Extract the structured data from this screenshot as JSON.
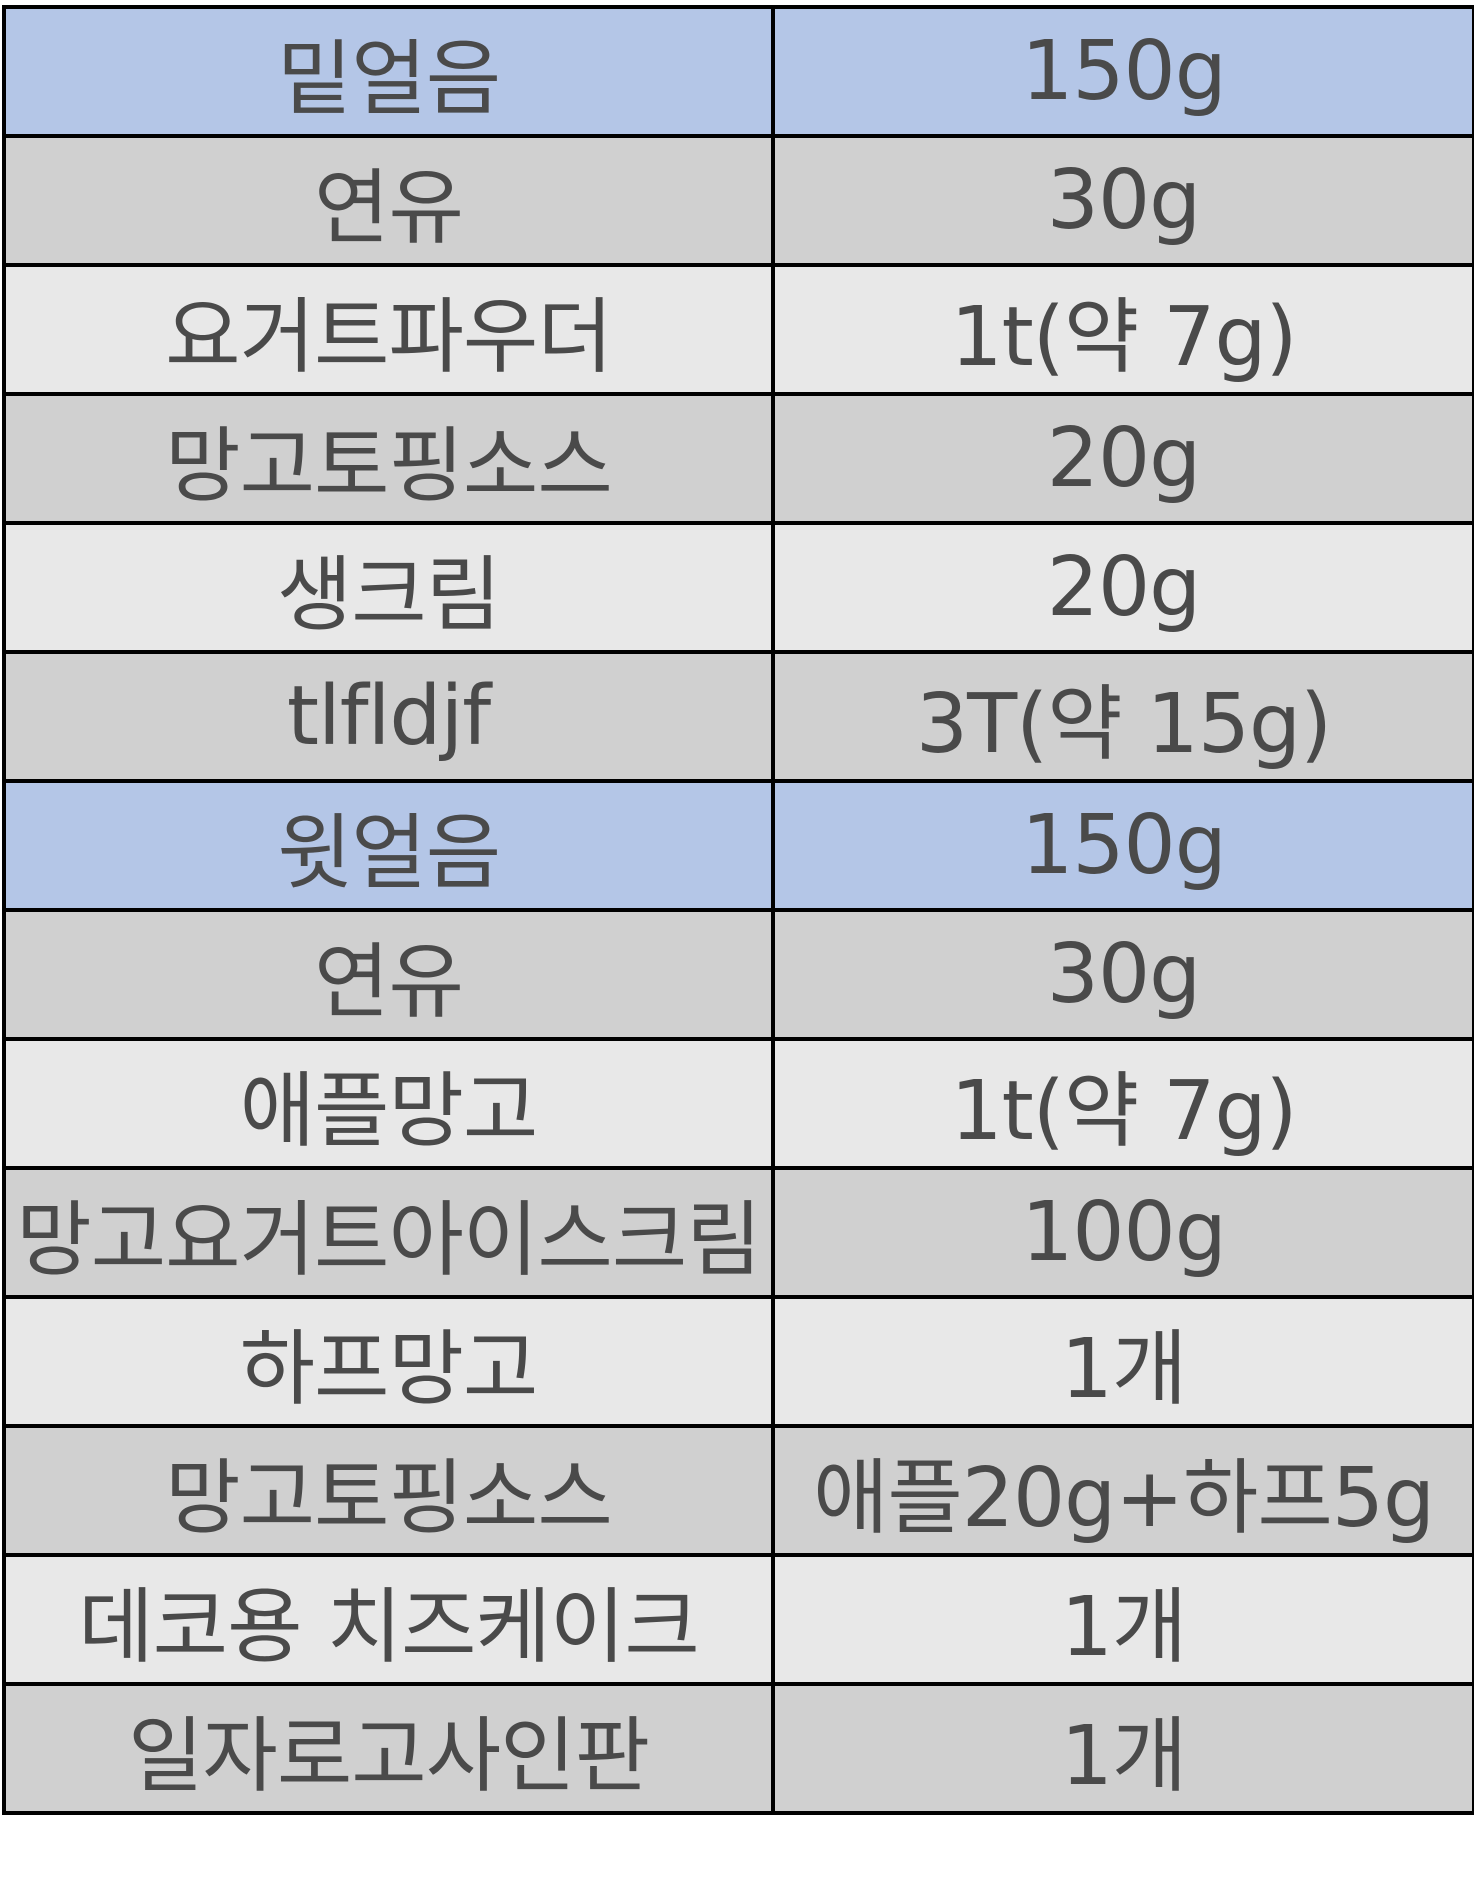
{
  "rows": [
    {
      "name": "밑얼음",
      "amount": "150g",
      "shade": "blue"
    },
    {
      "name": "연유",
      "amount": "30g",
      "shade": "dark"
    },
    {
      "name": "요거트파우더",
      "amount": "1t(약 7g)",
      "shade": "light"
    },
    {
      "name": "망고토핑소스",
      "amount": "20g",
      "shade": "dark"
    },
    {
      "name": "생크림",
      "amount": "20g",
      "shade": "light"
    },
    {
      "name": "tlfldjf",
      "amount": "3T(약 15g)",
      "shade": "dark"
    },
    {
      "name": "윗얼음",
      "amount": "150g",
      "shade": "blue"
    },
    {
      "name": "연유",
      "amount": "30g",
      "shade": "dark"
    },
    {
      "name": "애플망고",
      "amount": "1t(약 7g)",
      "shade": "light"
    },
    {
      "name": "망고요거트아이스크림",
      "amount": "100g",
      "shade": "dark"
    },
    {
      "name": "하프망고",
      "amount": "1개",
      "shade": "light"
    },
    {
      "name": "망고토핑소스",
      "amount": "애플20g+하프5g",
      "shade": "dark"
    },
    {
      "name": "데코용 치즈케이크",
      "amount": "1개",
      "shade": "light"
    },
    {
      "name": "일자로고사인판",
      "amount": "1개",
      "shade": "dark"
    }
  ],
  "colors": {
    "blue": "#b4c6e7",
    "dark": "#d0d0d0",
    "light": "#e8e8e8",
    "text": "#4a4a4a",
    "border": "#000000"
  }
}
